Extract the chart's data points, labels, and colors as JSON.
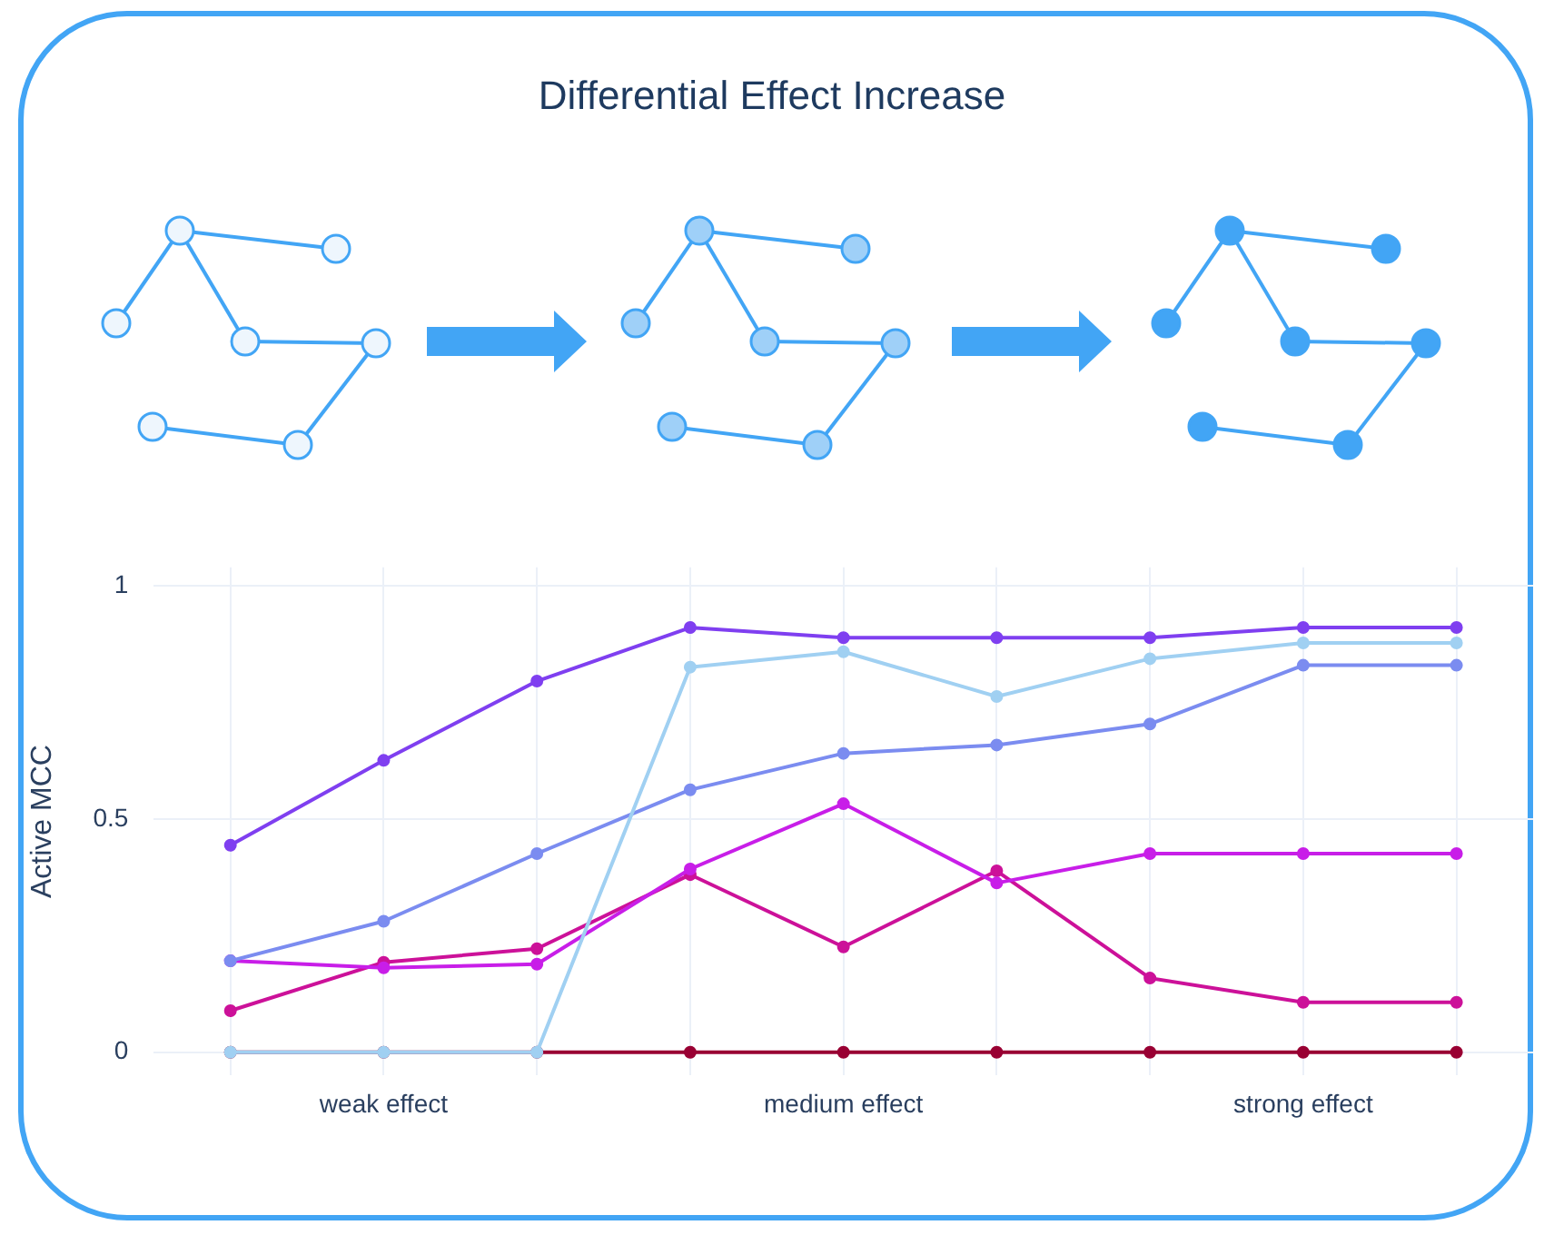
{
  "chart_data": {
    "type": "line",
    "title": "Differential Effect Increase",
    "ylabel": "Active MCC",
    "categories": [
      null,
      "weak effect",
      null,
      null,
      "medium effect",
      null,
      null,
      "strong effect",
      null
    ],
    "ylim": [
      -0.05,
      1.04
    ],
    "yticks": [
      0,
      0.5,
      1
    ],
    "grid": true,
    "legend": false,
    "marker": "circle",
    "line_style": "solid",
    "series": [
      {
        "color": "#7f3ff0",
        "values": [
          0.444,
          0.626,
          0.796,
          0.911,
          0.889,
          0.889,
          0.889,
          0.911,
          0.911
        ]
      },
      {
        "color": "#a0d0f2",
        "values": [
          0,
          0,
          0,
          0.826,
          0.859,
          0.763,
          0.844,
          0.878,
          0.878
        ]
      },
      {
        "color": "#7b8cf0",
        "values": [
          0.196,
          0.281,
          0.426,
          0.563,
          0.641,
          0.659,
          0.704,
          0.83,
          0.83
        ]
      },
      {
        "color": "#c81ee8",
        "values": [
          0.196,
          0.181,
          0.189,
          0.393,
          0.533,
          0.363,
          0.426,
          0.426,
          0.426
        ]
      },
      {
        "color": "#cc1199",
        "values": [
          0.089,
          0.193,
          0.222,
          0.381,
          0.226,
          0.389,
          0.159,
          0.107,
          0.107
        ]
      },
      {
        "color": "#990033",
        "values": [
          0,
          0,
          0,
          0,
          0,
          0,
          0,
          0,
          0
        ]
      }
    ]
  }
}
